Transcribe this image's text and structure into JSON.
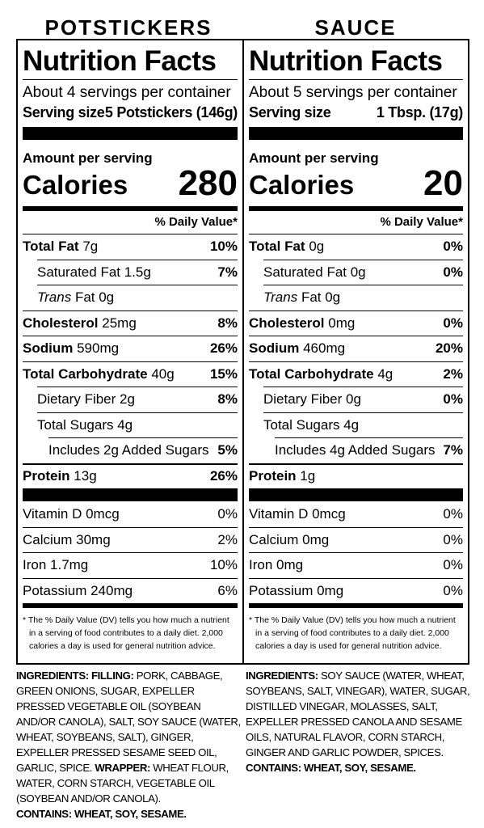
{
  "left": {
    "heading": "POTSTICKERS",
    "title": "Nutrition Facts",
    "servings_per_container": "About 4 servings per container",
    "serving_size_label": "Serving size",
    "serving_size_value": "5 Potstickers (146g)",
    "amount_per_serving": "Amount per serving",
    "calories_label": "Calories",
    "calories_value": "280",
    "dv_header": "% Daily Value*",
    "total_fat": {
      "label": "Total Fat",
      "amount": "7g",
      "dv": "10%"
    },
    "saturated_fat": {
      "label": "Saturated Fat 1.5g",
      "dv": "7%"
    },
    "trans_fat": {
      "label_italic": "Trans",
      "label_rest": "Fat 0g"
    },
    "cholesterol": {
      "label": "Cholesterol",
      "amount": "25mg",
      "dv": "8%"
    },
    "sodium": {
      "label": "Sodium",
      "amount": "590mg",
      "dv": "26%"
    },
    "total_carb": {
      "label": "Total Carbohydrate",
      "amount": "40g",
      "dv": "15%"
    },
    "dietary_fiber": {
      "label": "Dietary Fiber 2g",
      "dv": "8%"
    },
    "total_sugars": {
      "label": "Total Sugars 4g"
    },
    "added_sugars": {
      "label": "Includes 2g Added Sugars",
      "dv": "5%"
    },
    "protein": {
      "label": "Protein",
      "amount": "13g",
      "dv": "26%"
    },
    "vitamin_d": {
      "label": "Vitamin D 0mcg",
      "dv": "0%"
    },
    "calcium": {
      "label": "Calcium 30mg",
      "dv": "2%"
    },
    "iron": {
      "label": "Iron 1.7mg",
      "dv": "10%"
    },
    "potassium": {
      "label": "Potassium 240mg",
      "dv": "6%"
    },
    "footnote": "* The % Daily Value (DV) tells you how much a nutrient in a serving of food contributes to a daily diet. 2,000 calories a day is used for general nutrition advice.",
    "ingredients_label": "INGREDIENTS:",
    "filling_label": "FILLING:",
    "filling_text": "PORK, CABBAGE, GREEN ONIONS, SUGAR, EXPELLER PRESSED VEGETABLE OIL (SOYBEAN AND/OR CANOLA), SALT, SOY SAUCE (WATER, WHEAT, SOYBEANS, SALT), GINGER, EXPELLER PRESSED SESAME SEED OIL, GARLIC, SPICE.",
    "wrapper_label": "WRAPPER:",
    "wrapper_text": "WHEAT FLOUR, WATER, CORN STARCH, VEGETABLE OIL (SOYBEAN AND/OR CANOLA).",
    "contains": "CONTAINS: WHEAT, SOY, SESAME."
  },
  "right": {
    "heading": "SAUCE",
    "title": "Nutrition Facts",
    "servings_per_container": "About 5 servings per container",
    "serving_size_label": "Serving size",
    "serving_size_value": "1 Tbsp. (17g)",
    "amount_per_serving": "Amount per serving",
    "calories_label": "Calories",
    "calories_value": "20",
    "dv_header": "% Daily Value*",
    "total_fat": {
      "label": "Total Fat",
      "amount": "0g",
      "dv": "0%"
    },
    "saturated_fat": {
      "label": "Saturated Fat 0g",
      "dv": "0%"
    },
    "trans_fat": {
      "label_italic": "Trans",
      "label_rest": "Fat 0g"
    },
    "cholesterol": {
      "label": "Cholesterol",
      "amount": "0mg",
      "dv": "0%"
    },
    "sodium": {
      "label": "Sodium",
      "amount": "460mg",
      "dv": "20%"
    },
    "total_carb": {
      "label": "Total Carbohydrate",
      "amount": "4g",
      "dv": "2%"
    },
    "dietary_fiber": {
      "label": "Dietary Fiber 0g",
      "dv": "0%"
    },
    "total_sugars": {
      "label": "Total Sugars 4g"
    },
    "added_sugars": {
      "label": "Includes 4g Added Sugars",
      "dv": "7%"
    },
    "protein": {
      "label": "Protein",
      "amount": "1g",
      "dv": ""
    },
    "vitamin_d": {
      "label": "Vitamin D 0mcg",
      "dv": "0%"
    },
    "calcium": {
      "label": "Calcium 0mg",
      "dv": "0%"
    },
    "iron": {
      "label": "Iron 0mg",
      "dv": "0%"
    },
    "potassium": {
      "label": "Potassium 0mg",
      "dv": "0%"
    },
    "footnote": "* The % Daily Value (DV) tells you how much a nutrient in a serving of food contributes to a daily diet. 2,000 calories a day is used for general nutrition advice.",
    "ingredients_label": "INGREDIENTS:",
    "ingredients_text": "SOY SAUCE (WATER, WHEAT, SOYBEANS, SALT, VINEGAR), WATER, SUGAR, DISTILLED VINEGAR, MOLASSES, SALT, EXPELLER PRESSED CANOLA AND SESAME OILS, NATURAL FLAVOR, CORN STARCH, GINGER AND GARLIC POWDER, SPICES.",
    "contains": "CONTAINS: WHEAT, SOY, SESAME."
  }
}
